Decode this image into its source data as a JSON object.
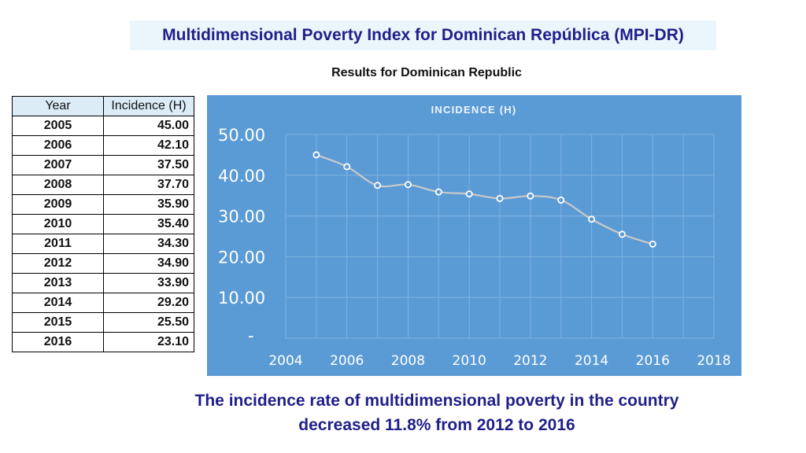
{
  "header": {
    "title": "Multidimensional Poverty Index for Dominican República (MPI-DR)",
    "subtitle": "Results for Dominican Republic"
  },
  "table": {
    "headers": [
      "Year",
      "Incidence (H)"
    ],
    "rows": [
      [
        "2005",
        "45.00"
      ],
      [
        "2006",
        "42.10"
      ],
      [
        "2007",
        "37.50"
      ],
      [
        "2008",
        "37.70"
      ],
      [
        "2009",
        "35.90"
      ],
      [
        "2010",
        "35.40"
      ],
      [
        "2011",
        "34.30"
      ],
      [
        "2012",
        "34.90"
      ],
      [
        "2013",
        "33.90"
      ],
      [
        "2014",
        "29.20"
      ],
      [
        "2015",
        "25.50"
      ],
      [
        "2016",
        "23.10"
      ]
    ]
  },
  "chart_data": {
    "type": "line",
    "title": "INCIDENCE (H)",
    "x": [
      2005,
      2006,
      2007,
      2008,
      2009,
      2010,
      2011,
      2012,
      2013,
      2014,
      2015,
      2016
    ],
    "series": [
      {
        "name": "Incidence (H)",
        "values": [
          45.0,
          42.1,
          37.5,
          37.7,
          35.9,
          35.4,
          34.3,
          34.9,
          33.9,
          29.2,
          25.5,
          23.1
        ]
      }
    ],
    "xlim": [
      2004,
      2018
    ],
    "ylim": [
      0,
      50
    ],
    "x_ticks": [
      2004,
      2006,
      2008,
      2010,
      2012,
      2014,
      2016,
      2018
    ],
    "y_ticks": [
      0,
      10,
      20,
      30,
      40,
      50
    ],
    "y_tick_labels": [
      "-",
      "10.00",
      "20.00",
      "30.00",
      "40.00",
      "50.00"
    ],
    "grid": true,
    "xlabel": "",
    "ylabel": "",
    "colors": {
      "background": "#5b9bd5",
      "line": "#c9c9c9",
      "marker_fill": "#5b9bd5",
      "marker_stroke": "#ffffff",
      "text": "#ffffff",
      "grid": "#7fb1e0"
    }
  },
  "footer": {
    "line1": "The incidence rate of multidimensional poverty in the country",
    "line2": "decreased 11.8% from 2012 to 2016"
  }
}
